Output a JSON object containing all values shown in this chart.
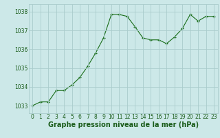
{
  "x": [
    0,
    1,
    2,
    3,
    4,
    5,
    6,
    7,
    8,
    9,
    10,
    11,
    12,
    13,
    14,
    15,
    16,
    17,
    18,
    19,
    20,
    21,
    22,
    23
  ],
  "y": [
    1033.0,
    1033.2,
    1033.2,
    1033.8,
    1033.8,
    1034.1,
    1034.5,
    1035.1,
    1035.8,
    1036.6,
    1037.85,
    1037.85,
    1037.75,
    1037.2,
    1036.6,
    1036.5,
    1036.5,
    1036.3,
    1036.65,
    1037.1,
    1037.85,
    1037.5,
    1037.75,
    1037.75
  ],
  "line_color": "#1a6e1a",
  "marker_color": "#1a6e1a",
  "bg_color": "#cce8e8",
  "grid_color": "#aacccc",
  "xlabel": "Graphe pression niveau de la mer (hPa)",
  "xlabel_fontsize": 7,
  "xlabel_color": "#1a5c1a",
  "yticks": [
    1033,
    1034,
    1035,
    1036,
    1037,
    1038
  ],
  "xticks": [
    0,
    1,
    2,
    3,
    4,
    5,
    6,
    7,
    8,
    9,
    10,
    11,
    12,
    13,
    14,
    15,
    16,
    17,
    18,
    19,
    20,
    21,
    22,
    23
  ],
  "ylim": [
    1032.6,
    1038.4
  ],
  "xlim": [
    -0.5,
    23.5
  ],
  "tick_fontsize": 5.5,
  "tick_color": "#1a5c1a"
}
